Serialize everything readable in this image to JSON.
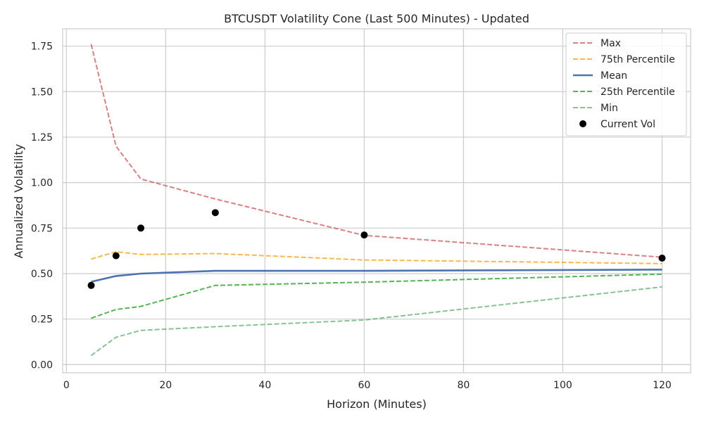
{
  "chart_data": {
    "type": "line",
    "title": "BTCUSDT Volatility Cone (Last 500 Minutes) - Updated",
    "xlabel": "Horizon (Minutes)",
    "ylabel": "Annualized Volatility",
    "xlim": [
      -0.75,
      125.75
    ],
    "ylim": [
      -0.045,
      1.845
    ],
    "xticks": [
      0,
      20,
      40,
      60,
      80,
      100,
      120
    ],
    "yticks": [
      0.0,
      0.25,
      0.5,
      0.75,
      1.0,
      1.25,
      1.5,
      1.75
    ],
    "xtick_labels": [
      "0",
      "20",
      "40",
      "60",
      "80",
      "100",
      "120"
    ],
    "ytick_labels": [
      "0.00",
      "0.25",
      "0.50",
      "0.75",
      "1.00",
      "1.25",
      "1.50",
      "1.75"
    ],
    "grid": true,
    "legend_position": "top-right",
    "x": [
      5,
      10,
      15,
      30,
      60,
      120
    ],
    "series": [
      {
        "name": "Max",
        "style": "dashed",
        "color": "#c44e52",
        "alpha": 0.7,
        "width": 2,
        "values": [
          1.76,
          1.2,
          1.02,
          0.91,
          0.71,
          0.59
        ]
      },
      {
        "name": "75th Percentile",
        "style": "dashed",
        "color": "#f5a623",
        "alpha": 0.8,
        "width": 2,
        "values": [
          0.58,
          0.62,
          0.605,
          0.61,
          0.575,
          0.555
        ]
      },
      {
        "name": "Mean",
        "style": "solid",
        "color": "#4c72b0",
        "alpha": 1,
        "width": 2.6,
        "values": [
          0.455,
          0.487,
          0.5,
          0.515,
          0.515,
          0.522
        ]
      },
      {
        "name": "25th Percentile",
        "style": "dashed",
        "color": "#2ca02c",
        "alpha": 0.8,
        "width": 2,
        "values": [
          0.255,
          0.303,
          0.32,
          0.435,
          0.453,
          0.497
        ]
      },
      {
        "name": "Min",
        "style": "dashed",
        "color": "#55a868",
        "alpha": 0.7,
        "width": 2,
        "values": [
          0.05,
          0.15,
          0.188,
          0.208,
          0.245,
          0.427
        ]
      }
    ],
    "scatter": {
      "name": "Current Vol",
      "color": "#000000",
      "values": [
        0.435,
        0.598,
        0.75,
        0.835,
        0.712,
        0.585
      ]
    }
  }
}
